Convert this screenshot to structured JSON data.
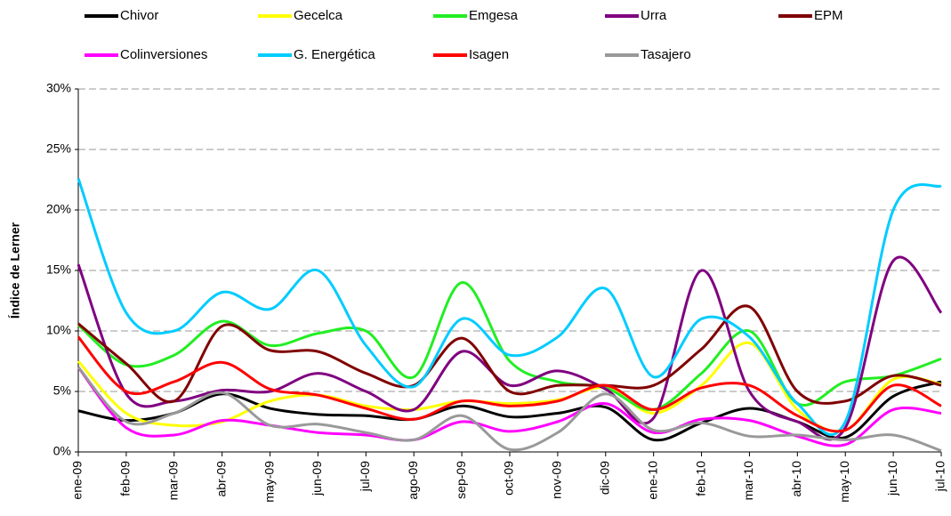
{
  "chart_data": {
    "type": "line",
    "y_label": "Índice de Lerner",
    "categories": [
      "ene-09",
      "feb-09",
      "mar-09",
      "abr-09",
      "may-09",
      "jun-09",
      "jul-09",
      "ago-09",
      "sep-09",
      "oct-09",
      "nov-09",
      "dic-09",
      "ene-10",
      "feb-10",
      "mar-10",
      "abr-10",
      "may-10",
      "jun-10",
      "jul-10"
    ],
    "ylim": [
      0,
      30
    ],
    "yticks": [
      {
        "value": 0,
        "label": "0%"
      },
      {
        "value": 5,
        "label": "5%"
      },
      {
        "value": 10,
        "label": "10%"
      },
      {
        "value": 15,
        "label": "15%"
      },
      {
        "value": 20,
        "label": "20%"
      },
      {
        "value": 25,
        "label": "25%"
      },
      {
        "value": 30,
        "label": "30%"
      }
    ],
    "grid": true,
    "legend": "top",
    "series": [
      {
        "name": "Chivor",
        "color": "#000000",
        "values": [
          3.4,
          2.6,
          3.2,
          4.8,
          3.6,
          3.1,
          3.0,
          2.7,
          3.8,
          2.9,
          3.2,
          3.7,
          1.0,
          2.4,
          3.6,
          2.5,
          1.2,
          4.6,
          5.8
        ]
      },
      {
        "name": "Gecelca",
        "color": "#ffff00",
        "values": [
          7.5,
          3.2,
          2.2,
          2.5,
          4.2,
          4.7,
          3.8,
          3.5,
          4.2,
          4.0,
          4.3,
          5.3,
          3.2,
          5.5,
          9.0,
          3.5,
          1.8,
          6.0,
          5.6
        ]
      },
      {
        "name": "Emgesa",
        "color": "#22ee22",
        "values": [
          10.5,
          7.2,
          8.0,
          10.8,
          8.8,
          9.8,
          10.0,
          6.2,
          14.0,
          7.5,
          5.8,
          5.3,
          3.5,
          6.5,
          10.0,
          4.0,
          5.8,
          6.3,
          7.7
        ]
      },
      {
        "name": "Urra",
        "color": "#800080",
        "values": [
          15.5,
          4.8,
          4.2,
          5.1,
          5.0,
          6.5,
          5.0,
          3.5,
          8.3,
          5.5,
          6.7,
          5.2,
          2.8,
          15.0,
          5.0,
          2.5,
          2.0,
          15.8,
          11.5
        ]
      },
      {
        "name": "EPM",
        "color": "#800000",
        "values": [
          10.6,
          7.3,
          4.2,
          10.4,
          8.4,
          8.3,
          6.5,
          5.5,
          9.4,
          5.0,
          5.5,
          5.5,
          5.5,
          8.5,
          12.0,
          5.0,
          4.2,
          6.3,
          5.5
        ]
      },
      {
        "name": "Colinversiones",
        "color": "#ff00ff",
        "values": [
          7.0,
          2.0,
          1.4,
          2.6,
          2.2,
          1.6,
          1.4,
          1.0,
          2.5,
          1.7,
          2.5,
          4.0,
          1.6,
          2.7,
          2.6,
          1.3,
          0.6,
          3.5,
          3.2
        ]
      },
      {
        "name": "G. Energética",
        "color": "#00ccff",
        "values": [
          22.6,
          11.5,
          10.0,
          13.2,
          11.8,
          15.0,
          8.8,
          5.4,
          11.0,
          8.0,
          9.5,
          13.5,
          6.2,
          11.0,
          9.5,
          4.0,
          2.5,
          20.0,
          22.0
        ]
      },
      {
        "name": "Isagen",
        "color": "#ff0000",
        "values": [
          9.5,
          5.0,
          5.8,
          7.4,
          5.2,
          4.7,
          3.6,
          2.7,
          4.2,
          3.8,
          4.2,
          5.5,
          3.5,
          5.3,
          5.5,
          3.0,
          1.8,
          5.5,
          3.8
        ]
      },
      {
        "name": "Tasajero",
        "color": "#999999",
        "values": [
          7.0,
          2.5,
          3.2,
          4.9,
          2.2,
          2.3,
          1.6,
          1.0,
          3.0,
          0.2,
          1.6,
          4.8,
          1.8,
          2.4,
          1.3,
          1.4,
          1.0,
          1.4,
          0.1
        ]
      }
    ]
  }
}
